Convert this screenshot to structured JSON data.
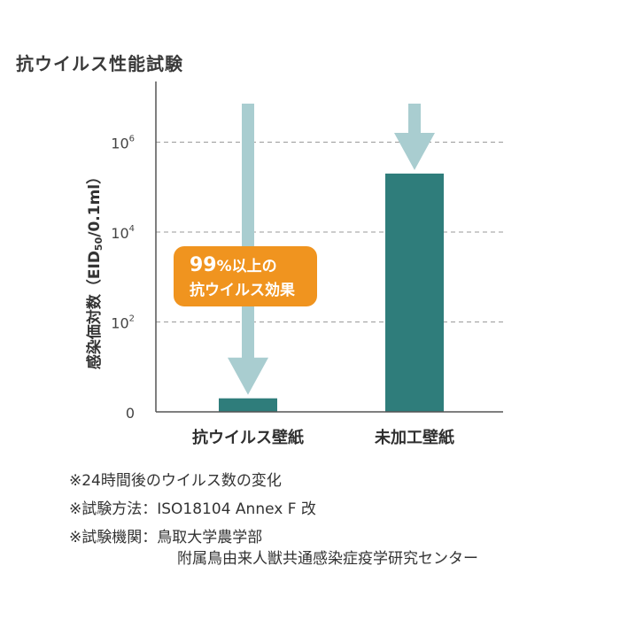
{
  "title": "抗ウイルス性能試験",
  "colors": {
    "bar": "#2f7d7b",
    "arrow": "#a9cdd0",
    "callout_bg": "#f0941f",
    "callout_text": "#ffffff",
    "grid": "#9a9a9a",
    "axis": "#555555"
  },
  "chart_data": {
    "type": "bar",
    "title": "抗ウイルス性能試験",
    "ylabel": "感染価対数（EID",
    "ylabel_sub": "50",
    "ylabel_tail": "/0.1ml）",
    "xlabel": "",
    "yscale": "log",
    "y_ticks": [
      {
        "base": "0",
        "exp": "",
        "value": 0
      },
      {
        "base": "10",
        "exp": "2",
        "value": 100
      },
      {
        "base": "10",
        "exp": "4",
        "value": 10000
      },
      {
        "base": "10",
        "exp": "6",
        "value": 1000000
      }
    ],
    "grid": true,
    "categories": [
      "抗ウイルス壁紙",
      "未加工壁紙"
    ],
    "values": [
      2,
      200000
    ],
    "annotation": {
      "line1_big": "99",
      "line1_rest": "%以上の",
      "line2": "抗ウイルス効果"
    }
  },
  "footnotes": [
    "※24時間後のウイルス数の変化",
    "※試験方法：ISO18104 Annex F 改",
    "※試験機関：鳥取大学農学部",
    "附属鳥由来人獣共通感染症疫学研究センター"
  ]
}
